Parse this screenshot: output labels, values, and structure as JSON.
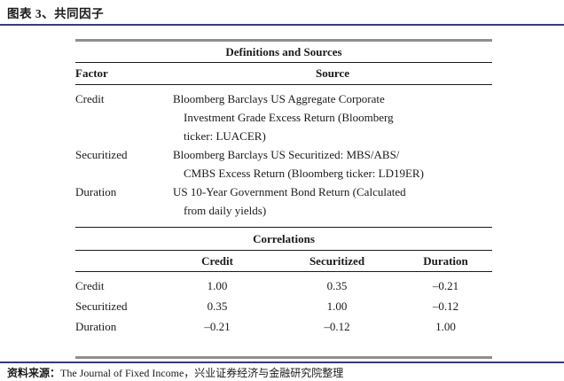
{
  "page": {
    "title": "图表 3、共同因子"
  },
  "colors": {
    "accent_navy": "#343a7c",
    "table_border_gray": "#8f8f8f"
  },
  "definitions_table": {
    "title": "Definitions and Sources",
    "columns": {
      "factor": "Factor",
      "source": "Source"
    },
    "rows": [
      {
        "factor": "Credit",
        "source": "Bloomberg Barclays US Aggregate Corporate\nInvestment Grade Excess Return (Bloomberg\nticker: LUACER)"
      },
      {
        "factor": "Securitized",
        "source": "Bloomberg Barclays US Securitized: MBS/ABS/\nCMBS Excess Return (Bloomberg ticker: LD19ER)"
      },
      {
        "factor": "Duration",
        "source": "US 10-Year Government Bond Return (Calculated\nfrom daily yields)"
      }
    ]
  },
  "correlations_table": {
    "title": "Correlations",
    "columns": {
      "credit": "Credit",
      "securitized": "Securitized",
      "duration": "Duration"
    },
    "rows": [
      {
        "label": "Credit",
        "values": [
          "1.00",
          "0.35",
          "–0.21"
        ]
      },
      {
        "label": "Securitized",
        "values": [
          "0.35",
          "1.00",
          "–0.12"
        ]
      },
      {
        "label": "Duration",
        "values": [
          "–0.21",
          "–0.12",
          "1.00"
        ]
      }
    ]
  },
  "footer": {
    "source_label": "资料来源：",
    "source_text": "The Journal of Fixed Income，兴业证券经济与金融研究院整理"
  }
}
